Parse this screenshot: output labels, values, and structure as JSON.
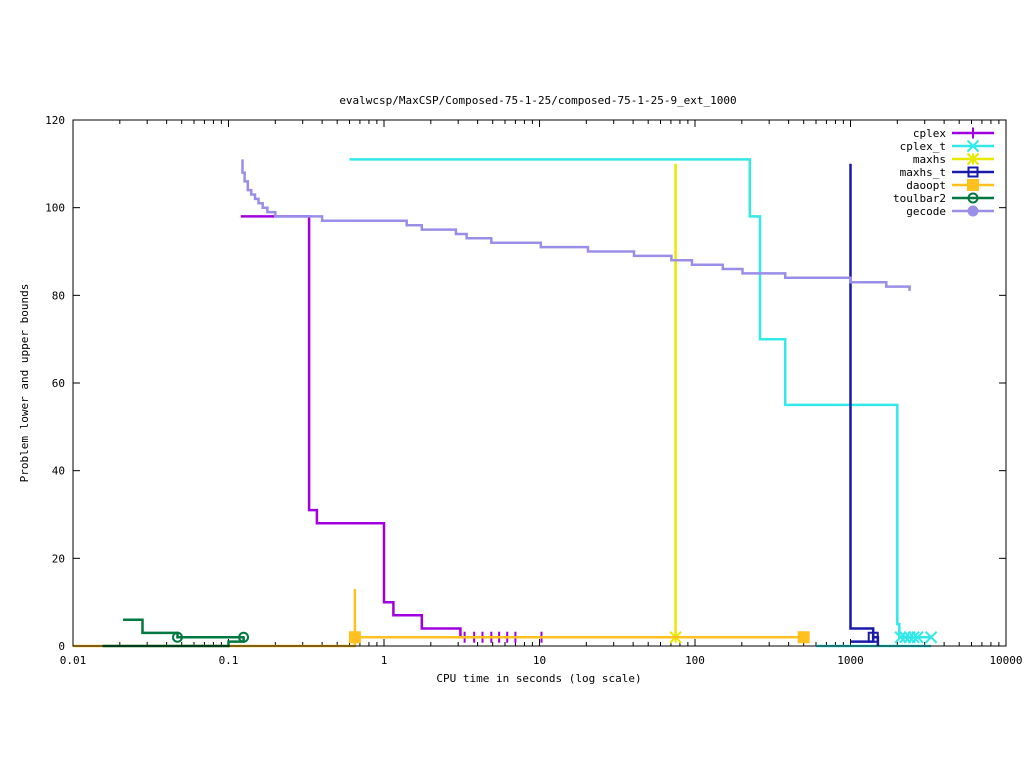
{
  "chart_data": {
    "type": "line",
    "title": "evalwcsp/MaxCSP/Composed-75-1-25/composed-75-1-25-9_ext_1000",
    "xlabel": "CPU time in seconds (log scale)",
    "ylabel": "Problem lower and upper bounds",
    "xscale": "log",
    "xlim": [
      0.01,
      10000
    ],
    "ylim": [
      0,
      120
    ],
    "xticks": [
      {
        "value": 0.01,
        "label": "0.01"
      },
      {
        "value": 0.1,
        "label": "0.1"
      },
      {
        "value": 1,
        "label": "1"
      },
      {
        "value": 10,
        "label": "10"
      },
      {
        "value": 100,
        "label": "100"
      },
      {
        "value": 1000,
        "label": "1000"
      },
      {
        "value": 10000,
        "label": "10000"
      }
    ],
    "yticks": [
      {
        "value": 0,
        "label": "0"
      },
      {
        "value": 20,
        "label": "20"
      },
      {
        "value": 40,
        "label": "40"
      },
      {
        "value": 60,
        "label": "60"
      },
      {
        "value": 80,
        "label": "80"
      },
      {
        "value": 100,
        "label": "100"
      },
      {
        "value": 120,
        "label": "120"
      }
    ],
    "grid": false,
    "legend_position": "top-right",
    "series": [
      {
        "name": "cplex",
        "color": "#a000e0",
        "marker": "plus",
        "lines": [
          [
            [
              0.12,
              98
            ],
            [
              0.33,
              98
            ],
            [
              0.33,
              31
            ],
            [
              0.37,
              31
            ],
            [
              0.37,
              28
            ],
            [
              1.0,
              28
            ],
            [
              1.0,
              10
            ],
            [
              1.15,
              10
            ],
            [
              1.15,
              7
            ],
            [
              1.75,
              7
            ],
            [
              1.75,
              4
            ],
            [
              3.1,
              4
            ],
            [
              3.1,
              2
            ],
            [
              10.3,
              2
            ]
          ]
        ],
        "markers": [
          [
            3.3,
            2
          ],
          [
            3.8,
            2
          ],
          [
            4.3,
            2
          ],
          [
            4.9,
            2
          ],
          [
            5.5,
            2
          ],
          [
            6.2,
            2
          ],
          [
            7.0,
            2
          ],
          [
            10.3,
            2
          ]
        ]
      },
      {
        "name": "cplex_t",
        "color": "#33e8e8",
        "marker": "x",
        "lines": [
          [
            [
              0.6,
              111
            ],
            [
              225,
              111
            ],
            [
              225,
              98
            ],
            [
              262,
              98
            ],
            [
              262,
              70
            ],
            [
              380,
              70
            ],
            [
              380,
              55
            ],
            [
              2000,
              55
            ],
            [
              2000,
              5
            ],
            [
              2060,
              5
            ],
            [
              2060,
              2
            ],
            [
              3300,
              2
            ]
          ],
          [
            [
              600,
              0
            ],
            [
              3300,
              0
            ]
          ]
        ],
        "markers": [
          [
            2100,
            2
          ],
          [
            2250,
            2
          ],
          [
            2400,
            2
          ],
          [
            2550,
            2
          ],
          [
            2700,
            2
          ],
          [
            3300,
            2
          ]
        ]
      },
      {
        "name": "maxhs",
        "color": "#e8e800",
        "marker": "star",
        "lines": [
          [
            [
              75,
              110
            ],
            [
              75,
              2
            ]
          ]
        ],
        "markers": [
          [
            75,
            2
          ]
        ]
      },
      {
        "name": "maxhs_t",
        "color": "#1a1aaa",
        "marker": "square-open",
        "lines": [
          [
            [
              1000,
              110
            ],
            [
              1000,
              4
            ],
            [
              1400,
              4
            ],
            [
              1400,
              2
            ],
            [
              1500,
              2
            ]
          ],
          [
            [
              1000,
              1
            ],
            [
              1400,
              1
            ],
            [
              1400,
              2
            ],
            [
              1500,
              2
            ],
            [
              1500,
              0
            ]
          ]
        ],
        "markers": [
          [
            1400,
            2
          ]
        ]
      },
      {
        "name": "daoopt",
        "color": "#ffc020",
        "marker": "square-filled",
        "lines": [
          [
            [
              0.01,
              0
            ],
            [
              0.65,
              0
            ],
            [
              0.65,
              13
            ],
            [
              0.65,
              2
            ],
            [
              500,
              2
            ]
          ]
        ],
        "markers": [
          [
            0.65,
            2
          ],
          [
            500,
            2
          ]
        ]
      },
      {
        "name": "toulbar2",
        "color": "#007840",
        "marker": "circle-open",
        "lines": [
          [
            [
              0.021,
              6
            ],
            [
              0.028,
              6
            ],
            [
              0.028,
              3
            ],
            [
              0.047,
              3
            ],
            [
              0.047,
              2
            ],
            [
              0.125,
              2
            ]
          ],
          [
            [
              0.0155,
              0
            ],
            [
              0.1,
              0
            ],
            [
              0.1,
              1
            ],
            [
              0.125,
              1
            ],
            [
              0.125,
              2
            ]
          ]
        ],
        "markers": [
          [
            0.047,
            2
          ],
          [
            0.125,
            2
          ]
        ]
      },
      {
        "name": "gecode",
        "color": "#9a8fe8",
        "marker": "circle-filled",
        "lines": [
          [
            [
              0.123,
              111
            ],
            [
              0.123,
              108
            ],
            [
              0.127,
              108
            ],
            [
              0.127,
              106
            ],
            [
              0.133,
              106
            ],
            [
              0.133,
              104
            ],
            [
              0.14,
              104
            ],
            [
              0.14,
              103
            ],
            [
              0.148,
              103
            ],
            [
              0.148,
              102
            ],
            [
              0.156,
              102
            ],
            [
              0.156,
              101
            ],
            [
              0.166,
              101
            ],
            [
              0.166,
              100
            ],
            [
              0.178,
              100
            ],
            [
              0.178,
              99
            ],
            [
              0.2,
              99
            ],
            [
              0.2,
              98
            ],
            [
              0.4,
              98
            ],
            [
              0.4,
              97
            ],
            [
              1.4,
              97
            ],
            [
              1.4,
              96
            ],
            [
              1.75,
              96
            ],
            [
              1.75,
              95
            ],
            [
              2.9,
              95
            ],
            [
              2.9,
              94
            ],
            [
              3.4,
              94
            ],
            [
              3.4,
              93
            ],
            [
              4.9,
              93
            ],
            [
              4.9,
              92
            ],
            [
              10.2,
              92
            ],
            [
              10.2,
              91
            ],
            [
              20.5,
              91
            ],
            [
              20.5,
              90
            ],
            [
              40.5,
              90
            ],
            [
              40.5,
              89
            ],
            [
              70.5,
              89
            ],
            [
              70.5,
              88
            ],
            [
              95.5,
              88
            ],
            [
              95.5,
              87
            ],
            [
              151,
              87
            ],
            [
              151,
              86
            ],
            [
              202,
              86
            ],
            [
              202,
              85
            ],
            [
              380,
              85
            ],
            [
              380,
              84
            ],
            [
              1000,
              84
            ],
            [
              1000,
              83
            ],
            [
              1700,
              83
            ],
            [
              1700,
              82
            ],
            [
              2400,
              82
            ],
            [
              2400,
              81
            ]
          ]
        ],
        "markers": []
      }
    ]
  }
}
